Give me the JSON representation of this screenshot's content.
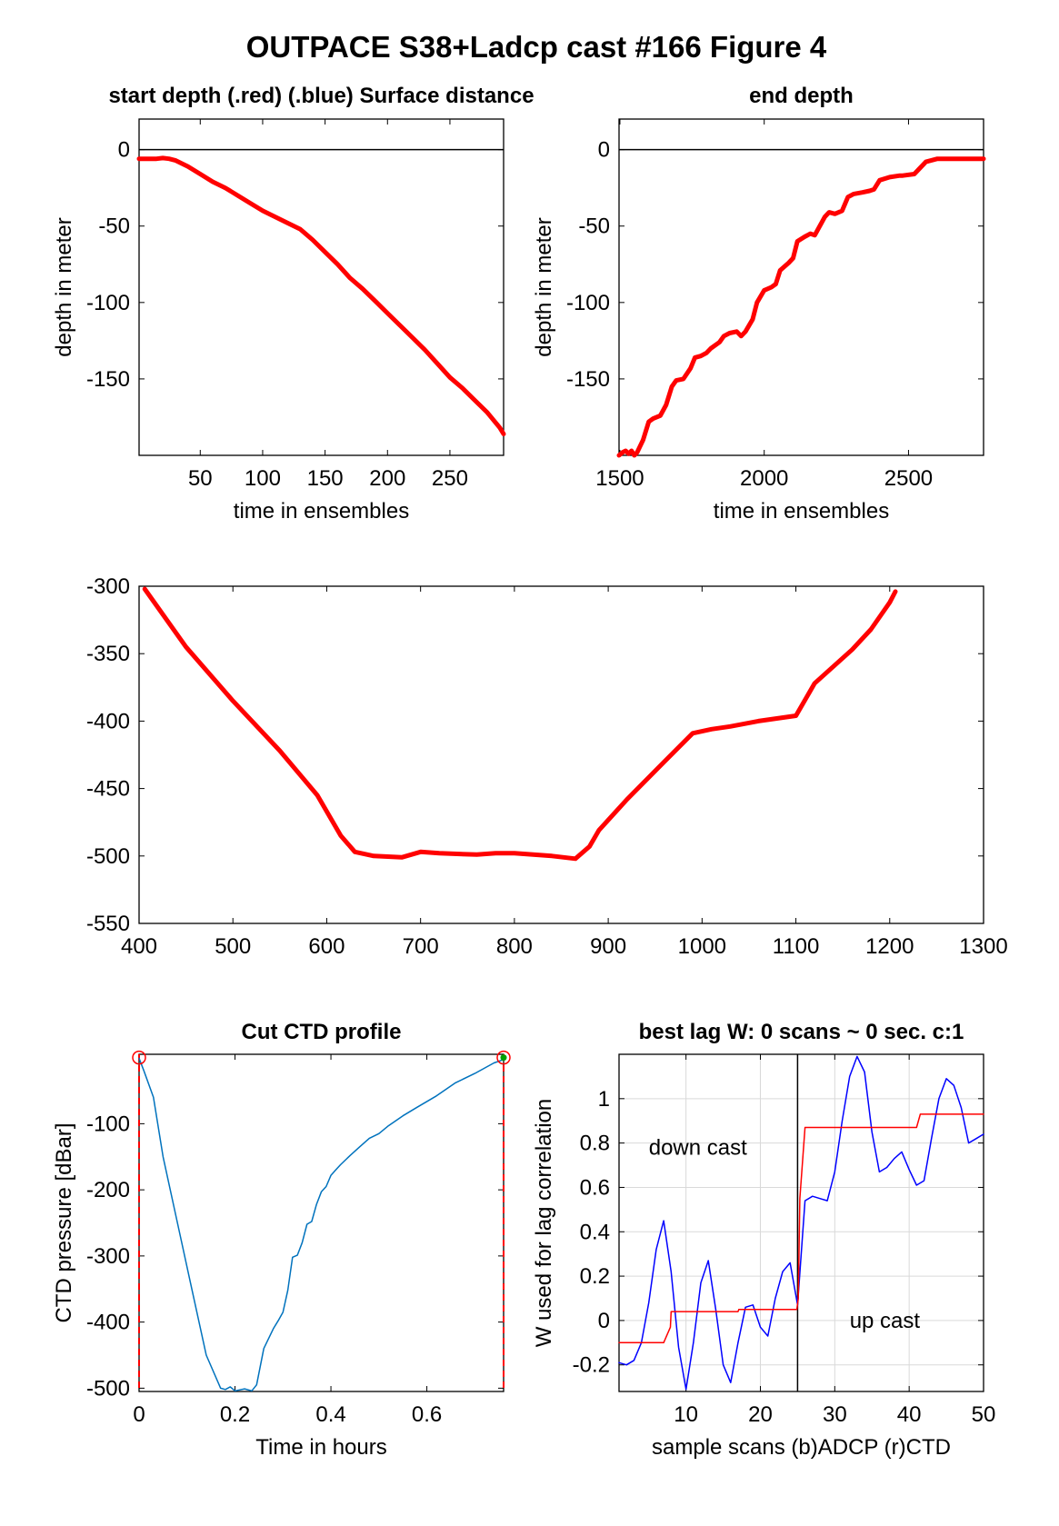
{
  "figure_title": "OUTPACE S38+Ladcp cast #166   Figure 4",
  "colors": {
    "red": "#ff0000",
    "blue": "#0000ff",
    "ctd": "#0072bd",
    "axis": "#000000",
    "grid": "#d9d9d9",
    "green": "#00a000"
  },
  "chart_data": [
    {
      "id": "start-depth",
      "type": "line",
      "title": "start depth (.red) (.blue) Surface distance",
      "xlabel": "time in ensembles",
      "ylabel": "depth in meter",
      "xlim": [
        1,
        293
      ],
      "ylim": [
        -200,
        20
      ],
      "xticks": [
        50,
        100,
        150,
        200,
        250
      ],
      "yticks": [
        0,
        -50,
        -100,
        -150
      ],
      "reference_line_y": 0,
      "series": [
        {
          "color": "red",
          "x": [
            1,
            10,
            15,
            20,
            25,
            30,
            40,
            50,
            60,
            70,
            80,
            90,
            100,
            110,
            120,
            130,
            140,
            150,
            160,
            170,
            180,
            190,
            200,
            210,
            220,
            230,
            240,
            250,
            260,
            270,
            280,
            285,
            290,
            293
          ],
          "y": [
            -6,
            -6,
            -6,
            -5.5,
            -6,
            -7,
            -11,
            -16,
            -21,
            -25,
            -30,
            -35,
            -40,
            -44,
            -48,
            -52,
            -59,
            -67,
            -75,
            -84,
            -91,
            -99,
            -107,
            -115,
            -123,
            -131,
            -140,
            -149,
            -156,
            -164,
            -172,
            -177,
            -182,
            -186
          ]
        }
      ]
    },
    {
      "id": "end-depth",
      "type": "line",
      "title": "end depth",
      "xlabel": "time in ensembles",
      "ylabel": "depth in meter",
      "xlim": [
        1497,
        2760
      ],
      "ylim": [
        -200,
        20
      ],
      "xticks": [
        1500,
        2000,
        2500
      ],
      "yticks": [
        0,
        -50,
        -100,
        -150
      ],
      "reference_line_y": 0,
      "series": [
        {
          "color": "red",
          "x": [
            1497,
            1510,
            1520,
            1530,
            1540,
            1550,
            1560,
            1580,
            1600,
            1615,
            1640,
            1660,
            1680,
            1695,
            1720,
            1745,
            1760,
            1780,
            1800,
            1815,
            1845,
            1860,
            1880,
            1905,
            1920,
            1935,
            1960,
            1975,
            2000,
            2025,
            2040,
            2055,
            2085,
            2100,
            2115,
            2140,
            2160,
            2175,
            2210,
            2225,
            2245,
            2270,
            2290,
            2310,
            2340,
            2365,
            2380,
            2400,
            2435,
            2470,
            2480,
            2520,
            2550,
            2560,
            2600,
            2620,
            2640,
            2700,
            2760
          ],
          "y": [
            -200,
            -198,
            -197,
            -199,
            -197,
            -200,
            -198,
            -190,
            -178,
            -176,
            -174,
            -167,
            -155,
            -151,
            -150,
            -143,
            -136,
            -135,
            -133,
            -130,
            -126,
            -122,
            -120,
            -119,
            -122,
            -119,
            -111,
            -100,
            -92,
            -90,
            -88,
            -79,
            -74,
            -71,
            -60,
            -57,
            -55,
            -56,
            -44,
            -41,
            -42,
            -40,
            -31,
            -29,
            -28,
            -27,
            -26,
            -20,
            -18,
            -17,
            -17,
            -16,
            -10,
            -8,
            -6,
            -6,
            -6,
            -6,
            -6
          ]
        }
      ]
    },
    {
      "id": "bottom-segment",
      "type": "line",
      "title": "",
      "xlabel": "",
      "ylabel": "",
      "xlim": [
        400,
        1300
      ],
      "ylim": [
        -550,
        -300
      ],
      "xticks": [
        400,
        500,
        600,
        700,
        800,
        900,
        1000,
        1100,
        1200,
        1300
      ],
      "yticks": [
        -300,
        -350,
        -400,
        -450,
        -500,
        -550
      ],
      "series": [
        {
          "color": "red",
          "x": [
            406,
            450,
            500,
            550,
            590,
            615,
            630,
            650,
            680,
            700,
            720,
            760,
            780,
            800,
            840,
            865,
            880,
            890,
            920,
            960,
            990,
            1010,
            1030,
            1060,
            1100,
            1120,
            1160,
            1180,
            1200,
            1206
          ],
          "y": [
            -302,
            -345,
            -385,
            -422,
            -455,
            -485,
            -497,
            -500,
            -501,
            -497,
            -498,
            -499,
            -498,
            -498,
            -500,
            -502,
            -493,
            -481,
            -458,
            -430,
            -409,
            -406,
            -404,
            -400,
            -396,
            -372,
            -347,
            -332,
            -312,
            -304
          ]
        }
      ]
    },
    {
      "id": "cut-ctd-profile",
      "type": "line",
      "title": "Cut CTD profile",
      "xlabel": "Time in hours",
      "ylabel": "CTD pressure [dBar]",
      "xlim": [
        0,
        0.76
      ],
      "ylim": [
        -505,
        5
      ],
      "xticks": [
        0,
        0.2,
        0.4,
        0.6
      ],
      "yticks": [
        -100,
        -200,
        -300,
        -400,
        -500
      ],
      "start_marker": [
        0,
        0
      ],
      "end_marker": [
        0.76,
        0
      ],
      "series": [
        {
          "color": "ctd",
          "x": [
            0,
            0.01,
            0.03,
            0.05,
            0.08,
            0.11,
            0.14,
            0.17,
            0.18,
            0.19,
            0.2,
            0.22,
            0.235,
            0.245,
            0.26,
            0.28,
            0.29,
            0.3,
            0.31,
            0.32,
            0.33,
            0.34,
            0.35,
            0.36,
            0.37,
            0.38,
            0.39,
            0.4,
            0.41,
            0.42,
            0.44,
            0.46,
            0.48,
            0.5,
            0.52,
            0.55,
            0.58,
            0.62,
            0.66,
            0.7,
            0.74,
            0.76
          ],
          "y": [
            -1,
            -20,
            -60,
            -150,
            -250,
            -350,
            -450,
            -500,
            -502,
            -498,
            -504,
            -501,
            -504,
            -495,
            -440,
            -410,
            -398,
            -385,
            -352,
            -302,
            -299,
            -280,
            -252,
            -248,
            -222,
            -203,
            -195,
            -178,
            -170,
            -162,
            -148,
            -135,
            -122,
            -115,
            -103,
            -88,
            -75,
            -58,
            -38,
            -24,
            -8,
            -3
          ]
        }
      ]
    },
    {
      "id": "best-lag",
      "type": "line",
      "title": "best lag W: 0 scans ~ 0 sec.  c:1",
      "xlabel": "sample scans (b)ADCP (r)CTD",
      "ylabel": "W used for lag correlation",
      "xlim": [
        1,
        50
      ],
      "ylim": [
        -0.32,
        1.2
      ],
      "xticks": [
        10,
        20,
        30,
        40,
        50
      ],
      "yticks": [
        -0.2,
        0,
        0.2,
        0.4,
        0.6,
        0.8,
        1
      ],
      "grid": true,
      "vertical_line_x": 25,
      "annotations": [
        {
          "text": "down cast",
          "x": 5,
          "y": 0.78
        },
        {
          "text": "up cast",
          "x": 32,
          "y": 0
        }
      ],
      "series": [
        {
          "color": "blue",
          "x": [
            1,
            2,
            3,
            4,
            5,
            6,
            7,
            8,
            9,
            10,
            11,
            12,
            13,
            14,
            15,
            16,
            17,
            18,
            19,
            20,
            21,
            22,
            23,
            24,
            25,
            26,
            27,
            28,
            29,
            30,
            31,
            32,
            33,
            34,
            35,
            36,
            37,
            38,
            39,
            40,
            41,
            42,
            43,
            44,
            45,
            46,
            47,
            48,
            49,
            50
          ],
          "y": [
            -0.19,
            -0.2,
            -0.18,
            -0.1,
            0.08,
            0.32,
            0.45,
            0.22,
            -0.12,
            -0.31,
            -0.1,
            0.17,
            0.27,
            0.05,
            -0.2,
            -0.28,
            -0.1,
            0.06,
            0.07,
            -0.03,
            -0.07,
            0.1,
            0.22,
            0.26,
            0.07,
            0.54,
            0.56,
            0.55,
            0.54,
            0.67,
            0.9,
            1.1,
            1.19,
            1.12,
            0.85,
            0.67,
            0.69,
            0.73,
            0.76,
            0.68,
            0.61,
            0.63,
            0.82,
            1.0,
            1.09,
            1.06,
            0.96,
            0.8,
            0.82,
            0.84
          ]
        },
        {
          "color": "red",
          "x": [
            1,
            6.9,
            7,
            7.9,
            8,
            17,
            17.1,
            24.9,
            25.1,
            25.3,
            26,
            35,
            41,
            41.5,
            50
          ],
          "y": [
            -0.1,
            -0.1,
            -0.1,
            -0.03,
            0.04,
            0.04,
            0.05,
            0.05,
            0.1,
            0.55,
            0.87,
            0.87,
            0.87,
            0.93,
            0.93
          ]
        }
      ]
    }
  ]
}
